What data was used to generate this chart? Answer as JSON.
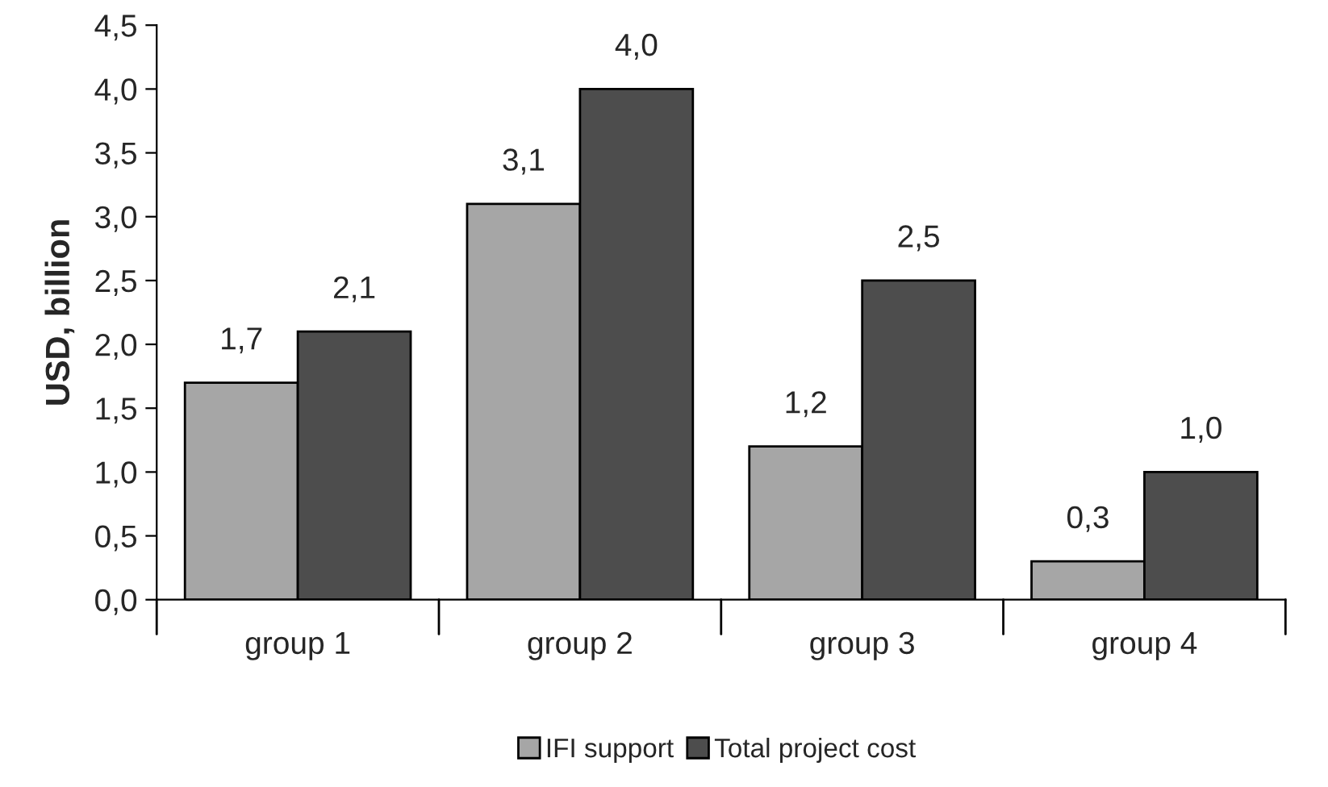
{
  "chart_data": {
    "type": "bar",
    "ylabel": "USD, billion",
    "categories": [
      "group 1",
      "group 2",
      "group 3",
      "group 4"
    ],
    "series": [
      {
        "name": "IFI support",
        "color": "#a6a6a6",
        "values": [
          1.7,
          3.1,
          1.2,
          0.3
        ],
        "value_labels": [
          "1,7",
          "3,1",
          "1,2",
          "0,3"
        ]
      },
      {
        "name": "Total project cost",
        "color": "#4d4d4d",
        "values": [
          2.1,
          4.0,
          2.5,
          1.0
        ],
        "value_labels": [
          "2,1",
          "4,0",
          "2,5",
          "1,0"
        ]
      }
    ],
    "ylim": [
      0,
      4.5
    ],
    "yticks": [
      {
        "value": 0,
        "label": "0,0"
      },
      {
        "value": 0.5,
        "label": "0,5"
      },
      {
        "value": 1,
        "label": "1,0"
      },
      {
        "value": 1.5,
        "label": "1,5"
      },
      {
        "value": 2,
        "label": "2,0"
      },
      {
        "value": 2.5,
        "label": "2,5"
      },
      {
        "value": 3,
        "label": "3,0"
      },
      {
        "value": 3.5,
        "label": "3,5"
      },
      {
        "value": 4,
        "label": "4,0"
      },
      {
        "value": 4.5,
        "label": "4,5"
      }
    ],
    "grid": false,
    "legend": "bottom"
  }
}
